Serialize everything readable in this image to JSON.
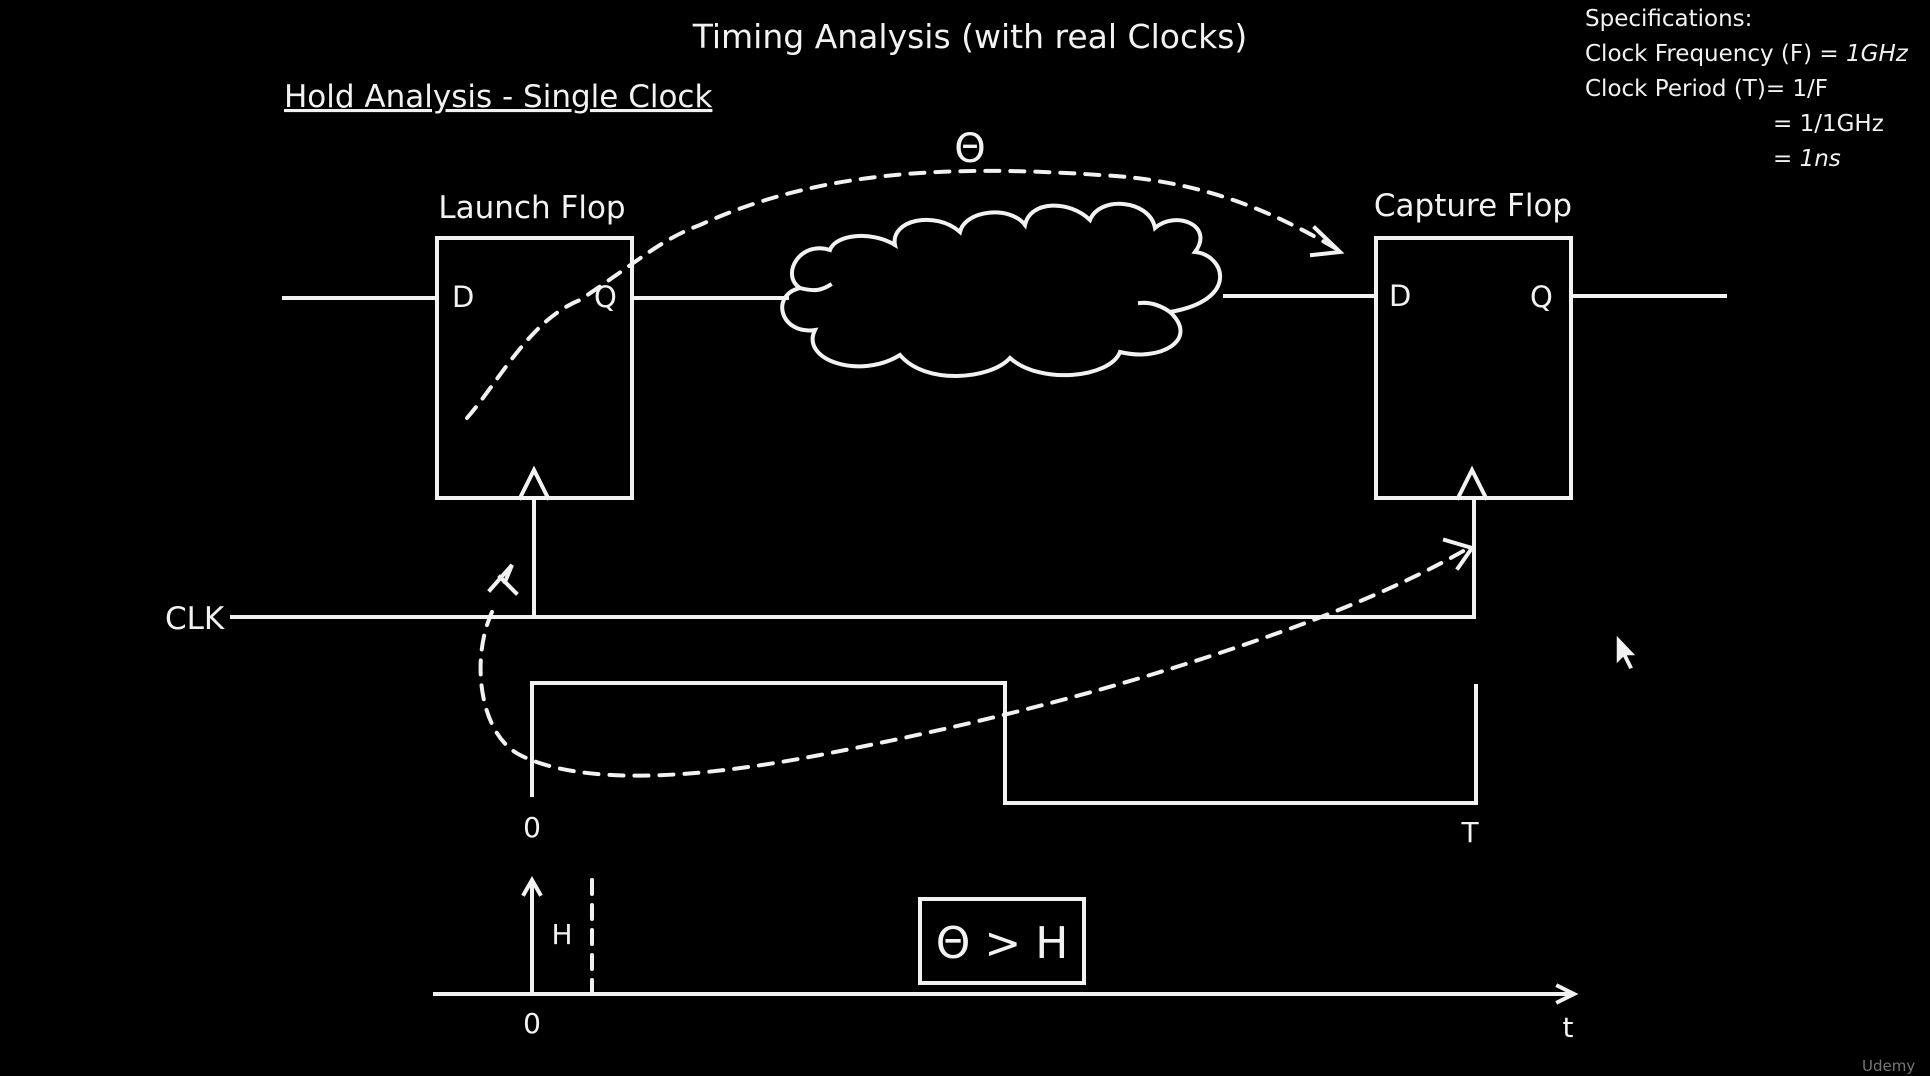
{
  "title": "Timing Analysis (with real Clocks)",
  "subtitle": "Hold Analysis - Single Clock",
  "specs": {
    "header": "Specifications:",
    "freq_label": "Clock Frequency (F) = ",
    "freq_value": "1GHz",
    "period_label": "Clock Period (T)= 1/F",
    "period_eq1": "= 1/1GHz",
    "period_eq2_prefix": "= ",
    "period_eq2_value": "1ns"
  },
  "launch_flop": {
    "label": "Launch Flop",
    "d": "D",
    "q": "Q"
  },
  "capture_flop": {
    "label": "Capture Flop",
    "d": "D",
    "q": "Q"
  },
  "theta_symbol": "Θ",
  "clk_label": "CLK",
  "waveform": {
    "start_label": "0",
    "end_label": "T"
  },
  "hold_axis": {
    "h_label": "H",
    "zero_label": "0",
    "t_label": "t"
  },
  "condition": "Θ > H",
  "watermark": "Udemy"
}
